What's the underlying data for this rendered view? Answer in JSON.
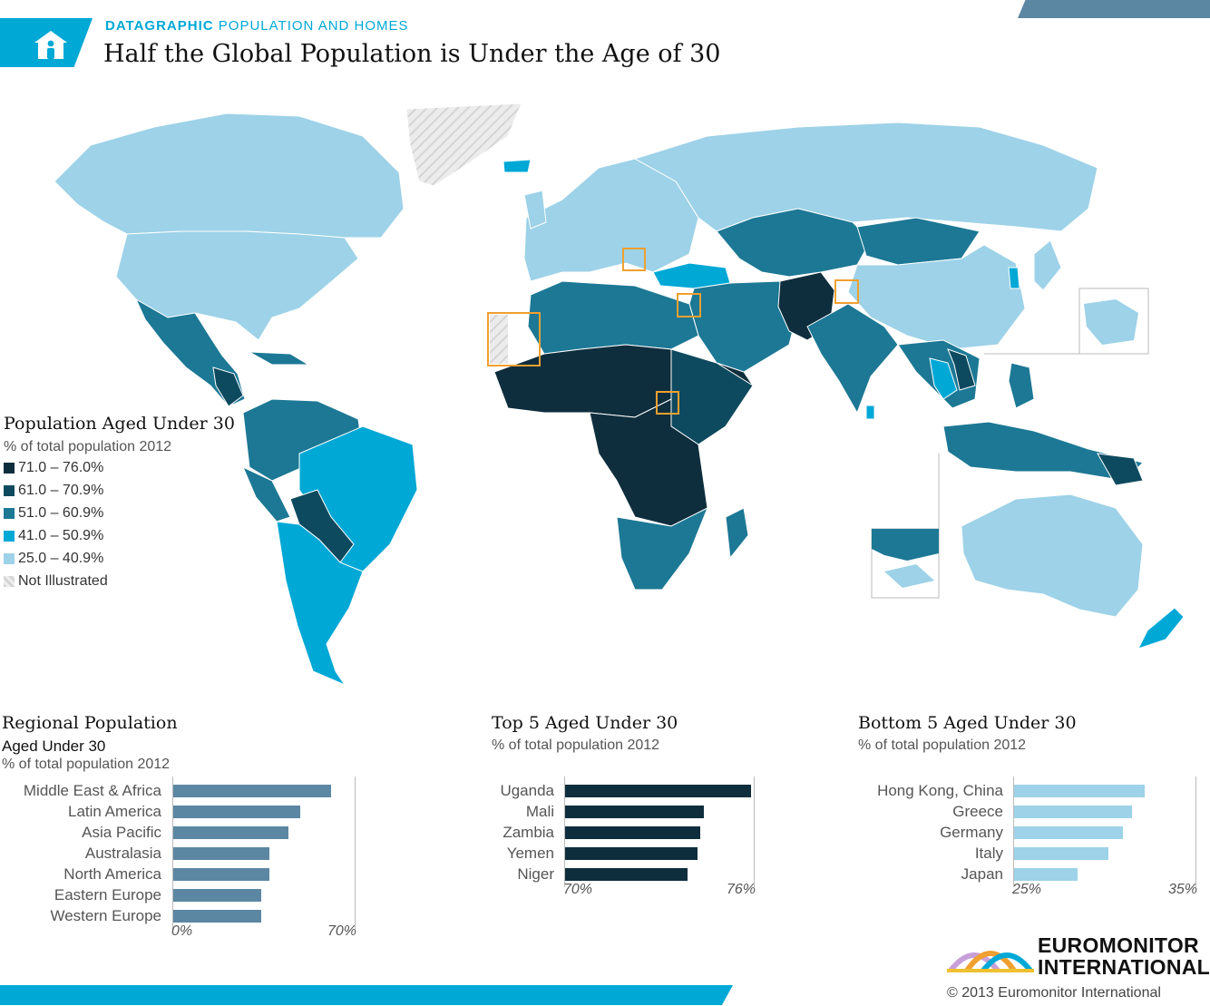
{
  "header": {
    "kicker_bold": "DATAGRAPHIC",
    "kicker_rest": "POPULATION AND HOMES",
    "title": "Half the Global Population is Under the Age of 30"
  },
  "colors": {
    "brand_cyan": "#00a8d6",
    "header_bar": "#5c87a3",
    "regional_bar": "#5c87a3",
    "top5_bar": "#0f2e3d",
    "bottom5_bar": "#9dd2e8",
    "frame": "#f0a030"
  },
  "legend": {
    "title": "Population Aged Under 30",
    "subtitle": "% of total population 2012",
    "items": [
      {
        "label": "71.0 – 76.0%",
        "color": "#0f2e3d"
      },
      {
        "label": "61.0 – 70.9%",
        "color": "#0e4a5f"
      },
      {
        "label": "51.0 – 60.9%",
        "color": "#1c7895"
      },
      {
        "label": "41.0 – 50.9%",
        "color": "#00a8d6"
      },
      {
        "label": "25.0 – 40.9%",
        "color": "#9dd2e8"
      },
      {
        "label": "Not Illustrated",
        "color": "hatch"
      }
    ]
  },
  "chart_data": [
    {
      "type": "bar",
      "title": "Regional Population",
      "subtitle": "Aged Under 30",
      "unit_note": "% of total population 2012",
      "categories": [
        "Middle East & Africa",
        "Latin America",
        "Asia Pacific",
        "Australasia",
        "North America",
        "Eastern Europe",
        "Western Europe"
      ],
      "values": [
        61,
        49,
        44.5,
        37,
        37,
        34,
        34
      ],
      "xlim": [
        0,
        70
      ],
      "tick_labels": [
        "0%",
        "70%"
      ]
    },
    {
      "type": "bar",
      "title": "Top 5 Aged Under 30",
      "unit_note": "% of total population 2012",
      "categories": [
        "Uganda",
        "Mali",
        "Zambia",
        "Yemen",
        "Niger"
      ],
      "values": [
        75.9,
        74.4,
        74.3,
        74.2,
        73.9
      ],
      "xlim": [
        70,
        76
      ],
      "tick_labels": [
        "70%",
        "76%"
      ]
    },
    {
      "type": "bar",
      "title": "Bottom 5 Aged Under 30",
      "unit_note": "% of total population 2012",
      "categories": [
        "Hong Kong, China",
        "Greece",
        "Germany",
        "Italy",
        "Japan"
      ],
      "values": [
        32.2,
        31.5,
        31,
        30.2,
        28.5
      ],
      "xlim": [
        25,
        35
      ],
      "tick_labels": [
        "25%",
        "35%"
      ]
    }
  ],
  "footer": {
    "brand_line1": "EUROMONITOR",
    "brand_line2": "INTERNATIONAL",
    "copyright": "© 2013 Euromonitor International"
  }
}
